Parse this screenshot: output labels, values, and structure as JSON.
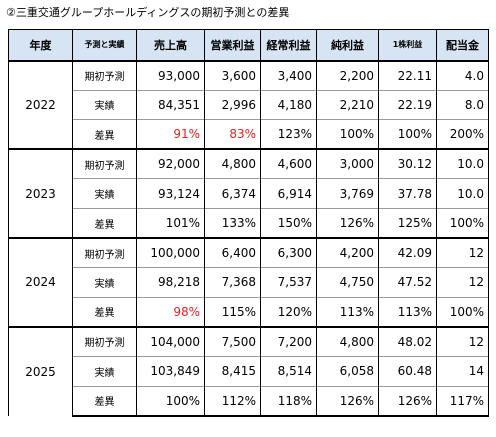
{
  "title": "②三重交通グループホールディングスの期初予測との差異",
  "colors": {
    "header_bg": "#d6e4f3",
    "highlight_red": "#e02424"
  },
  "columns": [
    "年度",
    "予測と実績",
    "売上高",
    "営業利益",
    "経常利益",
    "純利益",
    "1株利益",
    "配当金"
  ],
  "groups": [
    {
      "year": "2022",
      "rows": [
        {
          "label": "期初予測",
          "values": [
            "93,000",
            "3,600",
            "3,400",
            "2,200",
            "22.11",
            "4.0"
          ],
          "red": []
        },
        {
          "label": "実績",
          "values": [
            "84,351",
            "2,996",
            "4,180",
            "2,210",
            "22.19",
            "8.0"
          ],
          "red": []
        },
        {
          "label": "差異",
          "values": [
            "91%",
            "83%",
            "123%",
            "100%",
            "100%",
            "200%"
          ],
          "red": [
            0,
            1
          ]
        }
      ]
    },
    {
      "year": "2023",
      "rows": [
        {
          "label": "期初予測",
          "values": [
            "92,000",
            "4,800",
            "4,600",
            "3,000",
            "30.12",
            "10.0"
          ],
          "red": []
        },
        {
          "label": "実績",
          "values": [
            "93,124",
            "6,374",
            "6,914",
            "3,769",
            "37.78",
            "10.0"
          ],
          "red": []
        },
        {
          "label": "差異",
          "values": [
            "101%",
            "133%",
            "150%",
            "126%",
            "125%",
            "100%"
          ],
          "red": []
        }
      ]
    },
    {
      "year": "2024",
      "rows": [
        {
          "label": "期初予測",
          "values": [
            "100,000",
            "6,400",
            "6,300",
            "4,200",
            "42.09",
            "12"
          ],
          "red": []
        },
        {
          "label": "実績",
          "values": [
            "98,218",
            "7,368",
            "7,537",
            "4,750",
            "47.52",
            "12"
          ],
          "red": []
        },
        {
          "label": "差異",
          "values": [
            "98%",
            "115%",
            "120%",
            "113%",
            "113%",
            "100%"
          ],
          "red": [
            0
          ]
        }
      ]
    },
    {
      "year": "2025",
      "rows": [
        {
          "label": "期初予測",
          "values": [
            "104,000",
            "7,500",
            "7,200",
            "4,800",
            "48.02",
            "12"
          ],
          "red": []
        },
        {
          "label": "実績",
          "values": [
            "103,849",
            "8,415",
            "8,514",
            "6,058",
            "60.48",
            "14"
          ],
          "red": []
        },
        {
          "label": "差異",
          "values": [
            "100%",
            "112%",
            "118%",
            "126%",
            "126%",
            "117%"
          ],
          "red": []
        }
      ]
    }
  ]
}
